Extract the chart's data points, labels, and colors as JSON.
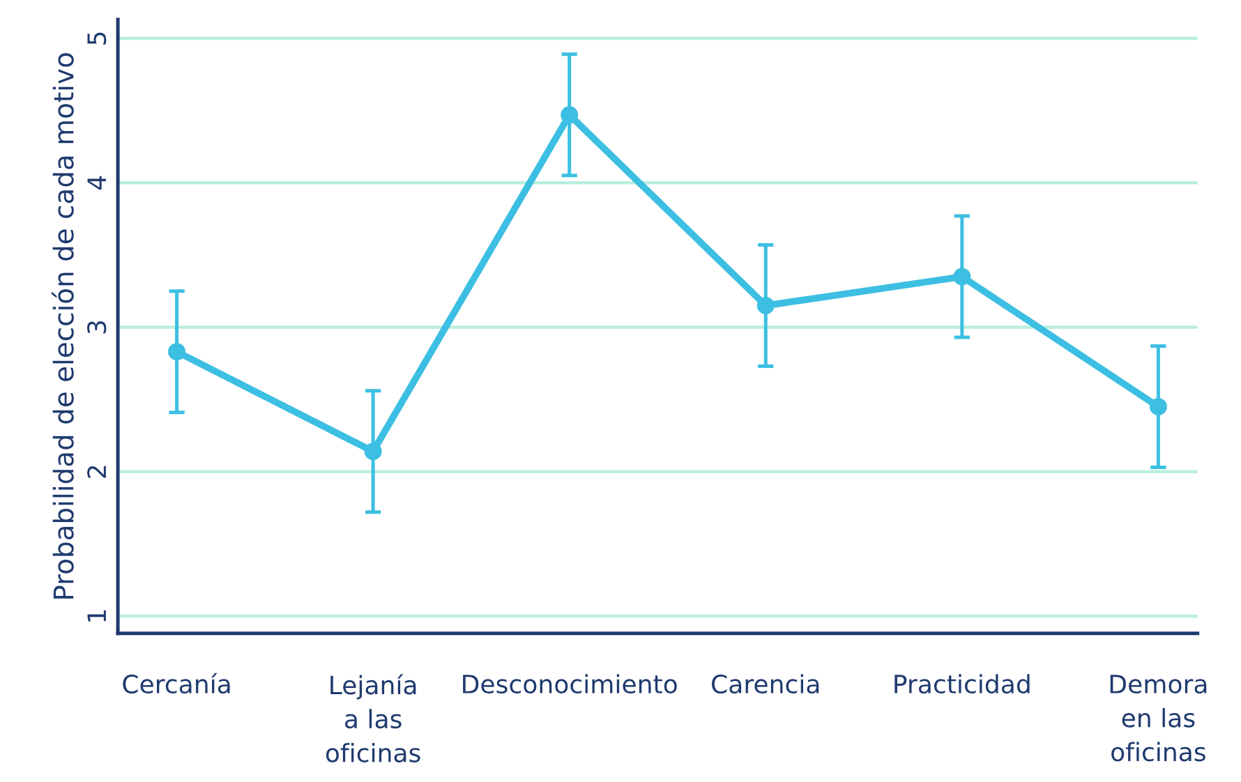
{
  "chart_data": {
    "type": "line",
    "ylabel": "Probabilidad de elección de cada motivo",
    "categories": [
      "Cercanía",
      "Lejanía\na las\noficinas",
      "Desconocimiento",
      "Carencia",
      "Practicidad",
      "Demora\nen las\noficinas"
    ],
    "series": [
      {
        "color": "#3cbfe2",
        "values": [
          2.83,
          2.14,
          4.47,
          3.15,
          3.35,
          2.45
        ],
        "errors": [
          0.42,
          0.42,
          0.42,
          0.42,
          0.42,
          0.42
        ]
      }
    ],
    "ylim": [
      0.88,
      5.13
    ],
    "yticks": [
      1,
      2,
      3,
      4,
      5
    ],
    "grid": "y",
    "marker": "circle",
    "line_style": "solid",
    "legend": false
  }
}
